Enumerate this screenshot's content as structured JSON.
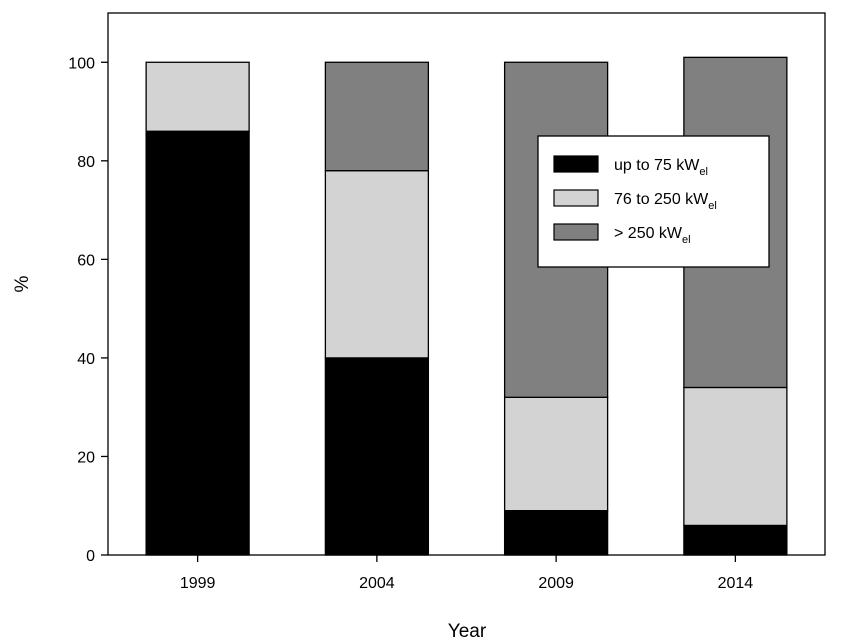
{
  "chart_data": {
    "type": "bar",
    "stacked": true,
    "title": "",
    "xlabel": "Year",
    "ylabel": "%",
    "ylim": [
      0,
      110
    ],
    "yticks": [
      0,
      20,
      40,
      60,
      80,
      100
    ],
    "categories": [
      "1999",
      "2004",
      "2009",
      "2014"
    ],
    "series": [
      {
        "name": "up to 75 kWel",
        "label_main": "up to 75 kW",
        "label_sub": "el",
        "color": "#000000",
        "values": [
          86,
          40,
          9,
          6
        ]
      },
      {
        "name": "76 to 250 kWel",
        "label_main": "76 to 250 kW",
        "label_sub": "el",
        "color": "#d3d3d3",
        "values": [
          14,
          38,
          23,
          28
        ]
      },
      {
        "name": "> 250 kWel",
        "label_main": "> 250 kW",
        "label_sub": "el",
        "color": "#808080",
        "values": [
          0,
          22,
          68,
          67
        ]
      }
    ],
    "grid": false,
    "legend_position": "upper-right"
  }
}
